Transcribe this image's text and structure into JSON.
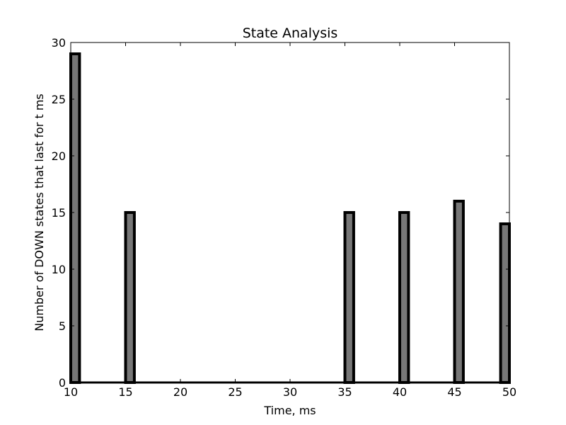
{
  "chart_data": {
    "type": "bar",
    "title": "State Analysis",
    "xlabel": "Time, ms",
    "ylabel": "Number of DOWN states that last for t ms",
    "xlim": [
      10,
      50
    ],
    "ylim": [
      0,
      30
    ],
    "xticks": [
      10,
      15,
      20,
      25,
      30,
      35,
      40,
      45,
      50
    ],
    "yticks": [
      0,
      5,
      10,
      15,
      20,
      25,
      30
    ],
    "bin_width": 0.8,
    "x": [
      10,
      15,
      35,
      40,
      45,
      49.2
    ],
    "values": [
      29,
      15,
      15,
      15,
      16,
      14
    ],
    "grid": false,
    "bar_color": "#777777",
    "edge_color": "#000000"
  }
}
